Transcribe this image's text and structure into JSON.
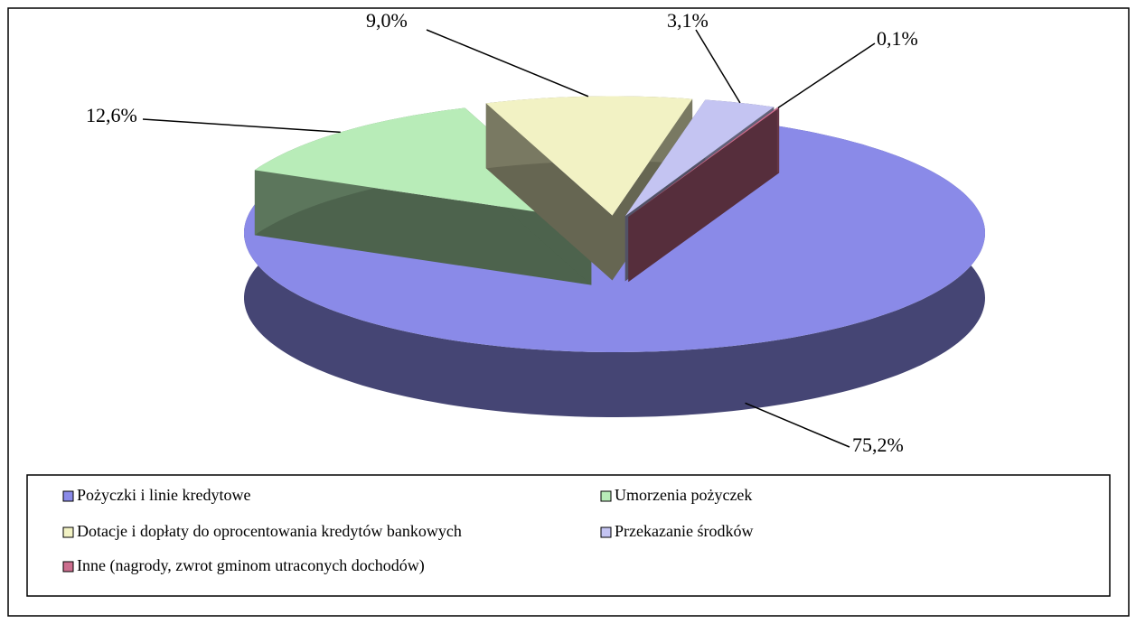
{
  "chart_data": {
    "type": "pie",
    "categories": [
      "Pożyczki i linie kredytowe",
      "Umorzenia pożyczek",
      "Dotacje i dopłaty do oprocentowania kredytów bankowych",
      "Przekazanie środków",
      "Inne (nagrody, zwrot gminom utraconych dochodów)"
    ],
    "values": [
      75.2,
      12.6,
      9.0,
      3.1,
      0.1
    ],
    "value_labels": [
      "75,2%",
      "12,6%",
      "9,0%",
      "3,1%",
      "0,1%"
    ],
    "colors": [
      "#8a8ae8",
      "#b8ecb8",
      "#f2f2c4",
      "#c4c4f2",
      "#cc6e8e"
    ],
    "legend": "bottom"
  }
}
